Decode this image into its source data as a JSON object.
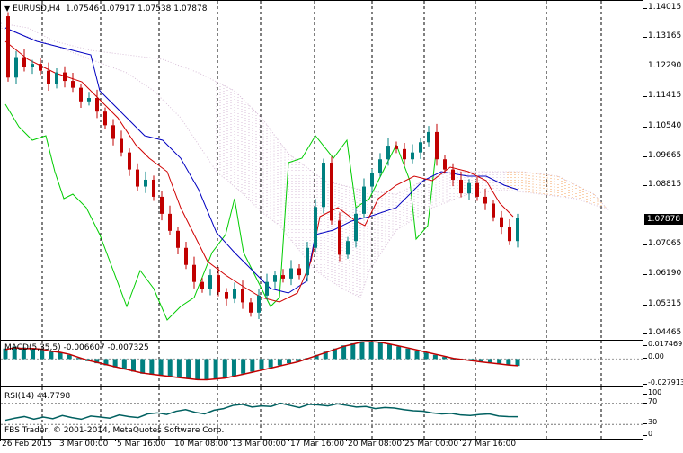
{
  "main_panel": {
    "title": "EURUSD,H4",
    "ohlc": "1.07546 1.07917 1.07538 1.07878",
    "price_levels": [
      "1.14015",
      "1.13165",
      "1.12290",
      "1.11415",
      "1.10540",
      "1.09665",
      "1.08815",
      "1.07065",
      "1.06190",
      "1.05315",
      "1.04465"
    ],
    "current_price": "1.07878"
  },
  "macd_panel": {
    "title": "MACD(5,35,5) -0.006607 -0.007325",
    "levels": [
      "0.017469",
      "0.00",
      "-0.027913"
    ]
  },
  "rsi_panel": {
    "title": "RSI(14) 44.7798",
    "levels": [
      "100",
      "70",
      "30",
      "0"
    ]
  },
  "time_labels": [
    "26 Feb 2015",
    "3 Mar 00:00",
    "5 Mar 16:00",
    "10 Mar 08:00",
    "13 Mar 00:00",
    "17 Mar 16:00",
    "20 Mar 08:00",
    "25 Mar 00:00",
    "27 Mar 16:00"
  ],
  "watermark": "FBS Trader, © 2001-2014, MetaQuotes Software Corp.",
  "colors": {
    "bull_candle": "#008080",
    "bear_candle": "#c00000",
    "tenkan": "#d00000",
    "kijun": "#0000c0",
    "chikou": "#00cc00",
    "cloud_a": "#f4a460",
    "cloud_b": "#d8bfd8",
    "macd_hist": "#008080",
    "macd_signal": "#c00000",
    "rsi_line": "#006060"
  },
  "chart_data": {
    "type": "candlestick",
    "symbol": "EURUSD",
    "timeframe": "H4",
    "price_range": [
      1.0425,
      1.1425
    ],
    "current": 1.07878,
    "last_candle": {
      "open": 1.07546,
      "high": 1.07917,
      "low": 1.07538,
      "close": 1.07878
    },
    "indicators": {
      "macd": {
        "params": "5,35,5",
        "main": -0.006607,
        "signal": -0.007325,
        "range": [
          -0.0279,
          0.0175
        ]
      },
      "rsi": {
        "period": 14,
        "value": 44.7798,
        "levels": [
          30,
          70
        ],
        "range": [
          0,
          100
        ]
      }
    },
    "x_labels": [
      "26 Feb 2015",
      "3 Mar 00:00",
      "5 Mar 16:00",
      "10 Mar 08:00",
      "13 Mar 00:00",
      "17 Mar 16:00",
      "20 Mar 08:00",
      "25 Mar 00:00",
      "27 Mar 16:00"
    ],
    "closes": [
      1.12,
      1.126,
      1.123,
      1.124,
      1.122,
      1.118,
      1.1215,
      1.119,
      1.117,
      1.113,
      1.114,
      1.11,
      1.106,
      1.102,
      1.098,
      1.093,
      1.088,
      1.09,
      1.085,
      1.08,
      1.075,
      1.07,
      1.065,
      1.06,
      1.058,
      1.062,
      1.057,
      1.055,
      1.058,
      1.054,
      1.051,
      1.056,
      1.06,
      1.062,
      1.061,
      1.064,
      1.062,
      1.07,
      1.082,
      1.095,
      1.078,
      1.068,
      1.072,
      1.08,
      1.088,
      1.092,
      1.096,
      1.1,
      1.099,
      1.096,
      1.098,
      1.101,
      1.104,
      1.096,
      1.093,
      1.09,
      1.086,
      1.089,
      1.085,
      1.083,
      1.079,
      1.076,
      1.072,
      1.0788
    ],
    "macd_hist": [
      0.01,
      0.012,
      0.011,
      0.01,
      0.009,
      0.007,
      0.006,
      0.004,
      0.001,
      -0.002,
      -0.004,
      -0.006,
      -0.008,
      -0.01,
      -0.012,
      -0.014,
      -0.015,
      -0.016,
      -0.017,
      -0.018,
      -0.019,
      -0.02,
      -0.02,
      -0.019,
      -0.018,
      -0.016,
      -0.014,
      -0.012,
      -0.01,
      -0.008,
      -0.006,
      -0.004,
      -0.002,
      0.001,
      0.004,
      0.007,
      0.01,
      0.013,
      0.015,
      0.017,
      0.017,
      0.016,
      0.014,
      0.012,
      0.01,
      0.008,
      0.006,
      0.004,
      0.002,
      0.0,
      -0.001,
      -0.002,
      -0.003,
      -0.004,
      -0.005,
      -0.006,
      -0.0066
    ],
    "rsi": [
      38,
      42,
      45,
      40,
      44,
      41,
      47,
      43,
      40,
      46,
      44,
      42,
      48,
      45,
      43,
      50,
      52,
      49,
      55,
      58,
      53,
      50,
      57,
      60,
      66,
      68,
      63,
      65,
      64,
      70,
      66,
      62,
      68,
      67,
      65,
      69,
      66,
      63,
      64,
      60,
      62,
      61,
      58,
      56,
      55,
      52,
      50,
      51,
      48,
      47,
      49,
      50,
      46,
      45,
      44.8
    ]
  }
}
